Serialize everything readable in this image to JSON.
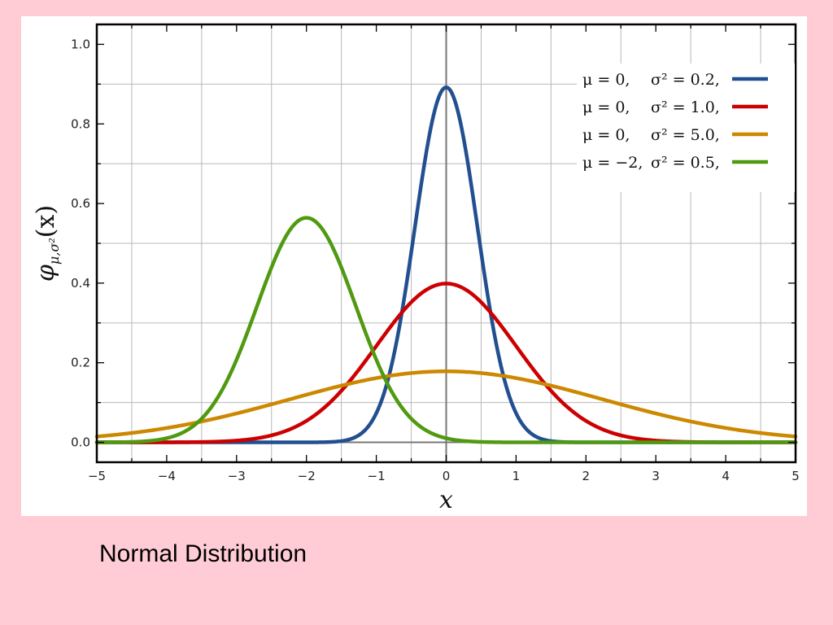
{
  "chart_data": {
    "type": "line",
    "xlabel": "x",
    "ylabel": "φμ,σ²(x)",
    "ylabel_parts": {
      "main": "φ",
      "sub": "μ,σ²",
      "arg": "(x)"
    },
    "xlim": [
      -5,
      5
    ],
    "ylim": [
      -0.05,
      1.05
    ],
    "x_ticks": [
      -5,
      -4,
      -3,
      -2,
      -1,
      0,
      1,
      2,
      3,
      4,
      5
    ],
    "x_tick_labels": [
      "−5",
      "−4",
      "−3",
      "−2",
      "−1",
      "0",
      "1",
      "2",
      "3",
      "4",
      "5"
    ],
    "y_ticks": [
      0.0,
      0.2,
      0.4,
      0.6,
      0.8,
      1.0
    ],
    "y_tick_labels": [
      "0.0",
      "0.2",
      "0.4",
      "0.6",
      "0.8",
      "1.0"
    ],
    "grid": true,
    "legend_position": "top-right",
    "series": [
      {
        "mu": 0,
        "sigma2": 0.2,
        "mu_label": "μ = 0,",
        "sigma_label": "σ² = 0.2,",
        "color": "#214f8f"
      },
      {
        "mu": 0,
        "sigma2": 1.0,
        "mu_label": "μ = 0,",
        "sigma_label": "σ² = 1.0,",
        "color": "#cc0000"
      },
      {
        "mu": 0,
        "sigma2": 5.0,
        "mu_label": "μ = 0,",
        "sigma_label": "σ² = 5.0,",
        "color": "#cc8800"
      },
      {
        "mu": -2,
        "sigma2": 0.5,
        "mu_label": "μ = −2,",
        "sigma_label": "σ² = 0.5,",
        "color": "#4f9a10"
      }
    ]
  },
  "caption": "Normal Distribution"
}
